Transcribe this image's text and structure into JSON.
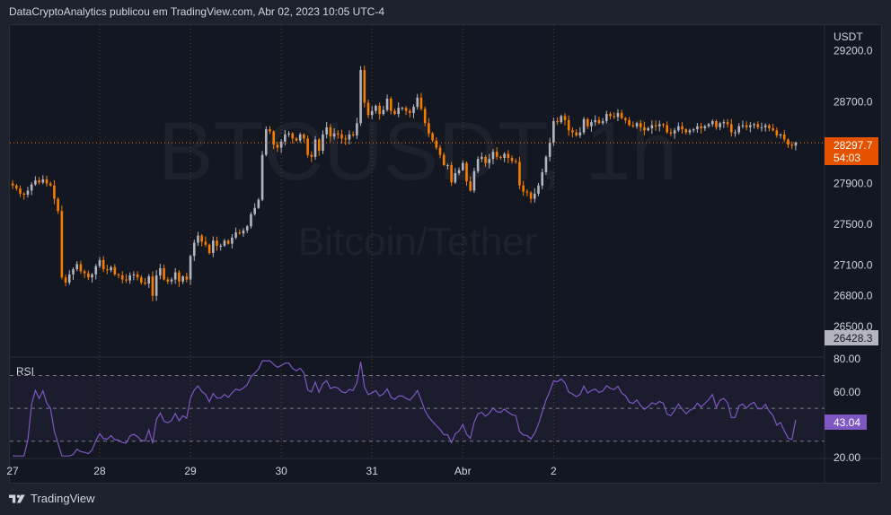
{
  "header": {
    "publisher_line": "DataCryptoAnalytics publicou em TradingView.com, Abr 02, 2023 10:05 UTC-4"
  },
  "watermark": {
    "symbol": "BTCUSDT, 1h",
    "description": "Bitcoin/Tether"
  },
  "price_scale": {
    "currency": "USDT",
    "ticks": [
      "29200.0",
      "28700.0",
      "27900.0",
      "27500.0",
      "27100.0",
      "26800.0",
      "26500.0"
    ],
    "last_price_label": "28297.7",
    "countdown_label": "54:03",
    "low_label": "26428.3"
  },
  "rsi": {
    "title": "RSI",
    "ticks": [
      "80.00",
      "60.00",
      "20.00"
    ],
    "value_label": "43.04"
  },
  "time_axis": {
    "labels": [
      "27",
      "28",
      "29",
      "30",
      "31",
      "Abr",
      "2"
    ]
  },
  "footer": {
    "brand": "TradingView"
  },
  "colors": {
    "up": "#b2b5be",
    "down": "#f57c00",
    "rsi_line": "#7e57c2",
    "last_price_bg": "#e65100",
    "low_label_bg": "#b2b5be"
  },
  "chart_data": {
    "type": "candlestick",
    "price_ylim": [
      26200,
      29450
    ],
    "rsi_ylim": [
      20,
      80
    ],
    "rsi_bands": [
      30,
      50,
      70
    ],
    "closes": [
      27880,
      27850,
      27800,
      27790,
      27830,
      27890,
      27930,
      27910,
      27940,
      27900,
      27880,
      27750,
      27630,
      26980,
      26930,
      27010,
      27060,
      27110,
      27040,
      27020,
      26980,
      27010,
      27090,
      27150,
      27060,
      27050,
      27080,
      27010,
      27000,
      26960,
      26950,
      27000,
      27010,
      26980,
      26930,
      26920,
      26990,
      26800,
      27000,
      27070,
      26960,
      26940,
      26960,
      27030,
      26940,
      26990,
      26960,
      27190,
      27320,
      27390,
      27330,
      27300,
      27220,
      27340,
      27290,
      27290,
      27340,
      27310,
      27370,
      27420,
      27410,
      27440,
      27480,
      27600,
      27660,
      27740,
      28180,
      28430,
      28410,
      28280,
      28250,
      28310,
      28380,
      28390,
      28340,
      28320,
      28380,
      28340,
      28180,
      28160,
      28330,
      28220,
      28380,
      28450,
      28360,
      28390,
      28380,
      28340,
      28330,
      28380,
      28370,
      28490,
      29010,
      28690,
      28570,
      28610,
      28660,
      28580,
      28620,
      28730,
      28610,
      28580,
      28640,
      28640,
      28610,
      28590,
      28650,
      28740,
      28630,
      28490,
      28390,
      28320,
      28250,
      28180,
      28080,
      28080,
      27910,
      28000,
      28030,
      28100,
      27920,
      27830,
      28020,
      28140,
      28160,
      28100,
      28140,
      28210,
      28160,
      28150,
      28190,
      28150,
      28120,
      28110,
      27880,
      27820,
      27810,
      27750,
      27800,
      27880,
      28010,
      28160,
      28300,
      28510,
      28500,
      28560,
      28520,
      28420,
      28400,
      28370,
      28400,
      28530,
      28460,
      28500,
      28520,
      28490,
      28510,
      28580,
      28560,
      28550,
      28590,
      28540,
      28520,
      28470,
      28460,
      28490,
      28450,
      28420,
      28440,
      28470,
      28460,
      28480,
      28470,
      28400,
      28390,
      28420,
      28460,
      28430,
      28400,
      28420,
      28430,
      28460,
      28440,
      28460,
      28480,
      28510,
      28450,
      28490,
      28500,
      28480,
      28400,
      28400,
      28460,
      28470,
      28450,
      28470,
      28480,
      28450,
      28450,
      28470,
      28440,
      28420,
      28370,
      28380,
      28330,
      28280,
      28270,
      28300
    ],
    "last_close": 28297.7,
    "rsi_last": 43.04
  }
}
